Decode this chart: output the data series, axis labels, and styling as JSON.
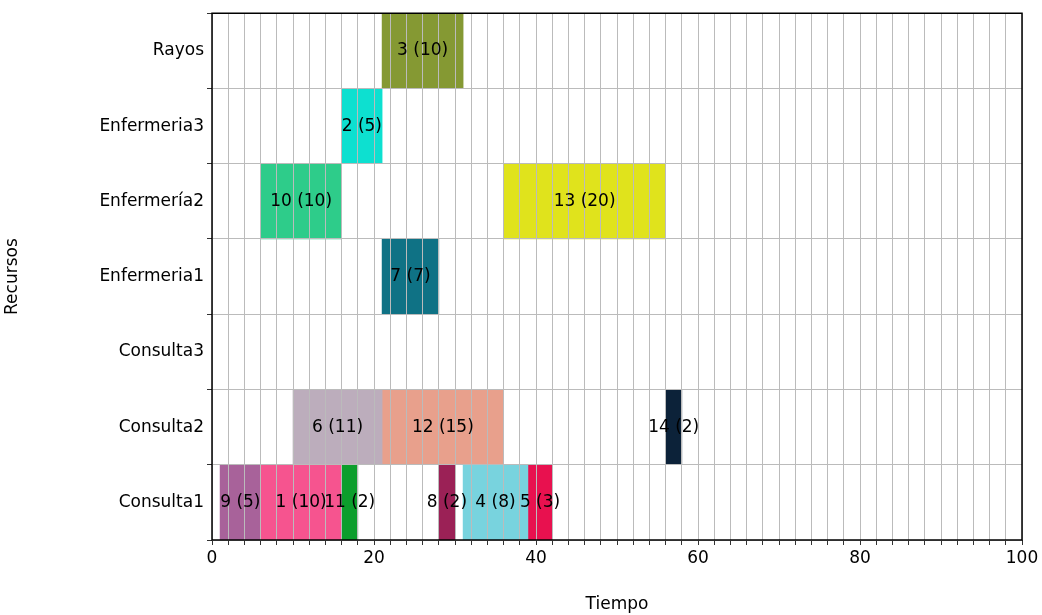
{
  "chart_data": {
    "type": "bar",
    "orientation": "horizontal",
    "xlabel": "Tiempo",
    "ylabel": "Recursos",
    "categories": [
      "Rayos",
      "Enfermeria3",
      "Enfermería2",
      "Enfermeria1",
      "Consulta3",
      "Consulta2",
      "Consulta1"
    ],
    "xlim": [
      0,
      100
    ],
    "xticks": [
      0,
      {
        "value": 2,
        "label": null
      },
      {
        "value": 4,
        "label": null
      },
      {
        "value": 6,
        "label": null
      },
      {
        "value": 8,
        "label": null
      },
      {
        "value": 10,
        "label": null
      },
      {
        "value": 12,
        "label": null
      },
      {
        "value": 14,
        "label": null
      },
      {
        "value": 16,
        "label": null
      },
      {
        "value": 18,
        "label": null
      },
      20,
      {
        "value": 22,
        "label": null
      },
      {
        "value": 24,
        "label": null
      },
      {
        "value": 26,
        "label": null
      },
      {
        "value": 28,
        "label": null
      },
      {
        "value": 30,
        "label": null
      },
      {
        "value": 32,
        "label": null
      },
      {
        "value": 34,
        "label": null
      },
      {
        "value": 36,
        "label": null
      },
      {
        "value": 38,
        "label": null
      },
      40,
      {
        "value": 42,
        "label": null
      },
      {
        "value": 44,
        "label": null
      },
      {
        "value": 46,
        "label": null
      },
      {
        "value": 48,
        "label": null
      },
      {
        "value": 50,
        "label": null
      },
      {
        "value": 52,
        "label": null
      },
      {
        "value": 54,
        "label": null
      },
      {
        "value": 56,
        "label": null
      },
      {
        "value": 58,
        "label": null
      },
      60,
      {
        "value": 62,
        "label": null
      },
      {
        "value": 64,
        "label": null
      },
      {
        "value": 66,
        "label": null
      },
      {
        "value": 68,
        "label": null
      },
      {
        "value": 70,
        "label": null
      },
      {
        "value": 72,
        "label": null
      },
      {
        "value": 74,
        "label": null
      },
      {
        "value": 76,
        "label": null
      },
      {
        "value": 78,
        "label": null
      },
      80,
      {
        "value": 82,
        "label": null
      },
      {
        "value": 84,
        "label": null
      },
      {
        "value": 86,
        "label": null
      },
      {
        "value": 88,
        "label": null
      },
      {
        "value": 90,
        "label": null
      },
      {
        "value": 92,
        "label": null
      },
      {
        "value": 94,
        "label": null
      },
      {
        "value": 96,
        "label": null
      },
      {
        "value": 98,
        "label": null
      },
      100
    ],
    "grid": true,
    "legend": false,
    "series": [
      {
        "color": "#859933",
        "values": [
          10,
          null,
          null,
          null,
          null,
          null,
          null
        ],
        "base": [
          21,
          null,
          null,
          null,
          null,
          null,
          null
        ],
        "value_labels": [
          "3 (10)",
          null,
          null,
          null,
          null,
          null,
          null
        ]
      },
      {
        "color": "#0de0d0",
        "values": [
          null,
          5,
          null,
          null,
          null,
          null,
          null
        ],
        "base": [
          null,
          16,
          null,
          null,
          null,
          null,
          null
        ],
        "value_labels": [
          null,
          "2 (5)",
          null,
          null,
          null,
          null,
          null
        ]
      },
      {
        "color": "#2ecc8a",
        "values": [
          null,
          null,
          10,
          null,
          null,
          null,
          null
        ],
        "base": [
          null,
          null,
          6,
          null,
          null,
          null,
          null
        ],
        "value_labels": [
          null,
          null,
          "10 (10)",
          null,
          null,
          null,
          null
        ]
      },
      {
        "color": "#e0e31c",
        "values": [
          null,
          null,
          20,
          null,
          null,
          null,
          null
        ],
        "base": [
          null,
          null,
          36,
          null,
          null,
          null,
          null
        ],
        "value_labels": [
          null,
          null,
          "13 (20)",
          null,
          null,
          null,
          null
        ]
      },
      {
        "color": "#0f7285",
        "values": [
          null,
          null,
          null,
          7,
          null,
          null,
          null
        ],
        "base": [
          null,
          null,
          null,
          21,
          null,
          null,
          null
        ],
        "value_labels": [
          null,
          null,
          null,
          "7 (7)",
          null,
          null,
          null
        ]
      },
      {
        "color": "#bcadbc",
        "values": [
          null,
          null,
          null,
          null,
          null,
          11,
          null
        ],
        "base": [
          null,
          null,
          null,
          null,
          null,
          10,
          null
        ],
        "value_labels": [
          null,
          null,
          null,
          null,
          null,
          "6 (11)",
          null
        ]
      },
      {
        "color": "#e8a08c",
        "values": [
          null,
          null,
          null,
          null,
          null,
          15,
          null
        ],
        "base": [
          null,
          null,
          null,
          null,
          null,
          21,
          null
        ],
        "value_labels": [
          null,
          null,
          null,
          null,
          null,
          "12 (15)",
          null
        ]
      },
      {
        "color": "#0c2239",
        "values": [
          null,
          null,
          null,
          null,
          null,
          2,
          null
        ],
        "base": [
          null,
          null,
          null,
          null,
          null,
          56,
          null
        ],
        "value_labels": [
          null,
          null,
          null,
          null,
          null,
          "14 (2)",
          null
        ]
      },
      {
        "color": "#a8629a",
        "values": [
          null,
          null,
          null,
          null,
          null,
          null,
          5
        ],
        "base": [
          null,
          null,
          null,
          null,
          null,
          null,
          1
        ],
        "value_labels": [
          null,
          null,
          null,
          null,
          null,
          null,
          "9 (5)"
        ]
      },
      {
        "color": "#f6548f",
        "values": [
          null,
          null,
          null,
          null,
          null,
          null,
          10
        ],
        "base": [
          null,
          null,
          null,
          null,
          null,
          null,
          6
        ],
        "value_labels": [
          null,
          null,
          null,
          null,
          null,
          null,
          "1 (10)"
        ]
      },
      {
        "color": "#0c9e2c",
        "values": [
          null,
          null,
          null,
          null,
          null,
          null,
          2
        ],
        "base": [
          null,
          null,
          null,
          null,
          null,
          null,
          16
        ],
        "value_labels": [
          null,
          null,
          null,
          null,
          null,
          null,
          "11 (2)"
        ]
      },
      {
        "color": "#9b2156",
        "values": [
          null,
          null,
          null,
          null,
          null,
          null,
          2
        ],
        "base": [
          null,
          null,
          null,
          null,
          null,
          null,
          28
        ],
        "value_labels": [
          null,
          null,
          null,
          null,
          null,
          null,
          "8 (2)"
        ]
      },
      {
        "color": "#78d3de",
        "values": [
          null,
          null,
          null,
          null,
          null,
          null,
          8
        ],
        "base": [
          null,
          null,
          null,
          null,
          null,
          null,
          31
        ],
        "value_labels": [
          null,
          null,
          null,
          null,
          null,
          null,
          "4 (8)"
        ]
      },
      {
        "color": "#e8114f",
        "values": [
          null,
          null,
          null,
          null,
          null,
          null,
          3
        ],
        "base": [
          null,
          null,
          null,
          null,
          null,
          null,
          39
        ],
        "value_labels": [
          null,
          null,
          null,
          null,
          null,
          null,
          "5 (3)"
        ]
      }
    ]
  }
}
